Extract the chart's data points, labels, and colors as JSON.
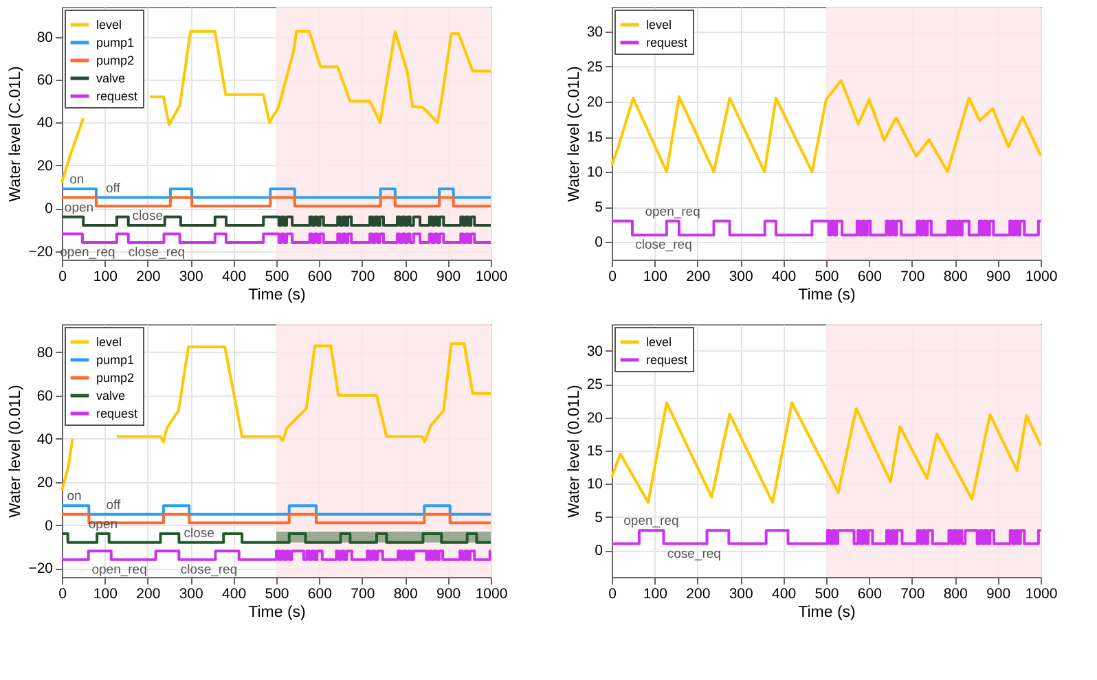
{
  "chart_data": [
    {
      "type": "line",
      "xlabel": "Time (s)",
      "ylabel": "Water level (C.01L)",
      "xlim": [
        0,
        1000
      ],
      "ylim": [
        -24,
        94
      ],
      "xticks": [
        0,
        100,
        200,
        300,
        400,
        500,
        600,
        700,
        800,
        900,
        1000
      ],
      "yticks": [
        -20,
        0,
        20,
        40,
        60,
        80
      ],
      "grid": true,
      "legend": "top left",
      "bands": [
        {
          "axis": "x",
          "from": 500,
          "to": 1000,
          "color": "#fde8ea"
        }
      ],
      "annotations": [
        {
          "text": "on",
          "x": 35,
          "y": 9
        },
        {
          "text": "off",
          "x": 119,
          "y": 5
        },
        {
          "text": "open",
          "x": 40,
          "y": -4
        },
        {
          "text": "close",
          "x": 200,
          "y": -8
        },
        {
          "text": "open_req",
          "x": 60,
          "y": -16
        },
        {
          "text": "close_req",
          "x": 221,
          "y": -16
        }
      ],
      "series": [
        {
          "name": "level",
          "color": "#ffc800",
          "x": [
            0,
            20,
            50,
            57,
            100,
            205,
            237,
            250,
            275,
            300,
            357,
            382,
            470,
            484,
            505,
            540,
            547,
            577,
            603,
            643,
            672,
            718,
            742,
            777,
            805,
            818,
            842,
            876,
            885,
            908,
            925,
            958,
            1000
          ],
          "values": [
            12,
            25,
            42,
            null,
            null,
            52,
            52,
            39,
            48,
            82.5,
            82.5,
            53,
            53,
            40,
            47,
            73,
            82.5,
            82.5,
            66,
            66,
            50,
            50,
            40,
            82.5,
            64,
            47.5,
            47,
            40,
            50,
            81.5,
            81.5,
            64,
            64
          ]
        },
        {
          "name": "pump1",
          "type": "step",
          "color": "#2c9ff0",
          "x": [
            0,
            80,
            253,
            303,
            486,
            543,
            743,
            777,
            880,
            913,
            1000
          ],
          "values": [
            9,
            5,
            9,
            5,
            9,
            5,
            9,
            5,
            9,
            5,
            5
          ]
        },
        {
          "name": "pump2",
          "type": "step",
          "color": "#ff6b2c",
          "x": [
            0,
            80,
            253,
            303,
            486,
            543,
            743,
            777,
            880,
            913,
            1000
          ],
          "values": [
            5,
            1,
            5,
            1,
            5,
            1,
            5,
            1,
            5,
            1,
            1
          ]
        },
        {
          "name": "valve",
          "type": "step",
          "color": "#26492f",
          "x": [
            0,
            50,
            128,
            155,
            240,
            277,
            357,
            383,
            470,
            506,
            512,
            518,
            524,
            537,
            578,
            584,
            590,
            596,
            602,
            610,
            643,
            649,
            655,
            661,
            667,
            675,
            718,
            724,
            730,
            736,
            742,
            750,
            782,
            788,
            794,
            800,
            806,
            812,
            820,
            835,
            857,
            863,
            869,
            875,
            881,
            890,
            930,
            936,
            942,
            948,
            954,
            962,
            1000
          ],
          "values": [
            -4,
            -8,
            -4,
            -8,
            -4,
            -8,
            -4,
            -8,
            -4,
            -8,
            -4,
            -8,
            -4,
            -8,
            -4,
            -8,
            -4,
            -8,
            -4,
            -8,
            -4,
            -8,
            -4,
            -8,
            -4,
            -8,
            -4,
            -8,
            -4,
            -8,
            -4,
            -8,
            -4,
            -8,
            -4,
            -8,
            -4,
            -8,
            -4,
            -8,
            -4,
            -8,
            -4,
            -8,
            -4,
            -8,
            -4,
            -8,
            -4,
            -8,
            -4,
            -8,
            -8
          ]
        },
        {
          "name": "request",
          "type": "step",
          "color": "#cc33ee",
          "x": [
            0,
            48,
            128,
            155,
            238,
            275,
            357,
            383,
            470,
            506,
            512,
            518,
            524,
            537,
            578,
            584,
            590,
            596,
            602,
            610,
            643,
            649,
            655,
            661,
            667,
            675,
            718,
            724,
            730,
            736,
            742,
            750,
            782,
            788,
            794,
            800,
            806,
            812,
            820,
            835,
            857,
            863,
            869,
            875,
            881,
            890,
            930,
            936,
            942,
            948,
            954,
            962,
            1000
          ],
          "values": [
            -12,
            -16,
            -12,
            -16,
            -12,
            -16,
            -12,
            -16,
            -12,
            -16,
            -12,
            -16,
            -12,
            -16,
            -12,
            -16,
            -12,
            -16,
            -12,
            -16,
            -12,
            -16,
            -12,
            -16,
            -12,
            -16,
            -12,
            -16,
            -12,
            -16,
            -12,
            -16,
            -12,
            -16,
            -12,
            -16,
            -12,
            -16,
            -12,
            -16,
            -12,
            -16,
            -12,
            -16,
            -12,
            -16,
            -12,
            -16,
            -12,
            -16,
            -12,
            -16,
            -16
          ]
        }
      ]
    },
    {
      "type": "line",
      "xlabel": "Time (s)",
      "ylabel": "Water level (C.01L)",
      "xlim": [
        0,
        1000
      ],
      "ylim": [
        -2.5,
        33.5
      ],
      "xticks": [
        0,
        100,
        200,
        300,
        400,
        500,
        600,
        700,
        800,
        900,
        1000
      ],
      "yticks": [
        0,
        5,
        10,
        15,
        20,
        25,
        30
      ],
      "grid": true,
      "legend": "top left",
      "bands": [
        {
          "axis": "x",
          "from": 500,
          "to": 1000,
          "color": "#fde8ea"
        }
      ],
      "annotations": [
        {
          "text": "open_req",
          "x": 142,
          "y": 3
        },
        {
          "text": "close_req",
          "x": 121,
          "y": 1
        }
      ],
      "series": [
        {
          "name": "level",
          "color": "#ffc800",
          "x": [
            0,
            15,
            50,
            128,
            157,
            238,
            275,
            356,
            383,
            467,
            500,
            535,
            575,
            600,
            635,
            663,
            710,
            740,
            783,
            808,
            833,
            858,
            888,
            925,
            958,
            1000
          ],
          "values": [
            11,
            13.5,
            20.5,
            10,
            20.7,
            10,
            20.5,
            10,
            20.5,
            10,
            20.3,
            23,
            16.8,
            20.3,
            14.5,
            17.7,
            12.2,
            14.6,
            10,
            15.3,
            20.5,
            17.3,
            19,
            13.6,
            17.8,
            12.3
          ]
        },
        {
          "name": "request",
          "type": "step",
          "color": "#cc33ee",
          "x": [
            0,
            48,
            128,
            157,
            238,
            275,
            357,
            383,
            467,
            506,
            512,
            518,
            524,
            537,
            572,
            578,
            584,
            590,
            596,
            603,
            640,
            646,
            652,
            658,
            664,
            675,
            712,
            718,
            724,
            730,
            736,
            745,
            783,
            789,
            795,
            801,
            807,
            812,
            817,
            833,
            857,
            863,
            869,
            875,
            881,
            890,
            928,
            934,
            940,
            946,
            952,
            962,
            995,
            1000
          ],
          "values": [
            3,
            1,
            3,
            1,
            3,
            1,
            3,
            1,
            3,
            1,
            3,
            1,
            3,
            1,
            3,
            1,
            3,
            1,
            3,
            1,
            3,
            1,
            3,
            1,
            3,
            1,
            3,
            1,
            3,
            1,
            3,
            1,
            3,
            1,
            3,
            1,
            3,
            1,
            3,
            1,
            3,
            1,
            3,
            1,
            3,
            1,
            3,
            1,
            3,
            1,
            3,
            1,
            3,
            3
          ]
        }
      ]
    },
    {
      "type": "line",
      "xlabel": "Time (s)",
      "ylabel": "Water level (0.01L)",
      "xlim": [
        0,
        1000
      ],
      "ylim": [
        -24,
        93
      ],
      "xticks": [
        0,
        100,
        200,
        300,
        400,
        500,
        600,
        700,
        800,
        900,
        1000
      ],
      "yticks": [
        -20,
        0,
        20,
        40,
        60,
        80
      ],
      "grid": true,
      "legend": "top left",
      "bands": [
        {
          "axis": "x",
          "from": 500,
          "to": 1000,
          "color": "#fde8ea"
        }
      ],
      "annotations": [
        {
          "text": "on",
          "x": 29,
          "y": 9
        },
        {
          "text": "off",
          "x": 120,
          "y": 5
        },
        {
          "text": "open",
          "x": 96,
          "y": -4
        },
        {
          "text": "close",
          "x": 320,
          "y": -8
        },
        {
          "text": "open_req",
          "x": 134,
          "y": -16
        },
        {
          "text": "close_req",
          "x": 343,
          "y": -16
        }
      ],
      "series": [
        {
          "name": "level",
          "color": "#ffc800",
          "x": [
            0,
            15,
            25,
            60,
            128,
            230,
            237,
            245,
            272,
            295,
            380,
            420,
            508,
            515,
            525,
            570,
            590,
            627,
            645,
            734,
            757,
            840,
            846,
            860,
            890,
            908,
            938,
            958,
            1000
          ],
          "values": [
            16,
            27,
            40,
            null,
            41,
            41,
            38.5,
            45,
            53,
            82.5,
            82.5,
            41,
            41,
            39,
            45,
            54,
            83,
            83,
            60,
            60,
            41,
            41,
            38.5,
            46,
            53,
            84,
            84,
            61,
            61
          ]
        },
        {
          "name": "pump1",
          "type": "step",
          "color": "#2c9ff0",
          "x": [
            0,
            63,
            237,
            297,
            530,
            593,
            845,
            905,
            1000
          ],
          "values": [
            9,
            5,
            9,
            5,
            9,
            5,
            9,
            5,
            5
          ]
        },
        {
          "name": "pump2",
          "type": "step",
          "color": "#ff6b2c",
          "x": [
            0,
            63,
            237,
            297,
            530,
            593,
            845,
            905,
            1000
          ],
          "values": [
            5,
            1,
            5,
            1,
            5,
            1,
            5,
            1,
            1
          ]
        },
        {
          "name": "valve",
          "type": "step",
          "color": "#1f5c2a",
          "x": [
            0,
            14,
            82,
            110,
            230,
            273,
            377,
            420,
            500,
            530,
            568,
            650,
            672,
            734,
            757,
            842,
            885,
            945,
            967,
            1000
          ],
          "values": [
            -4,
            -8,
            -4,
            -8,
            -4,
            -8,
            -4,
            -8,
            -8,
            -4,
            -8,
            -4,
            -8,
            -4,
            -8,
            -4,
            -8,
            -4,
            -8,
            -8
          ],
          "lower": [
            null,
            null,
            null,
            null,
            null,
            null,
            null,
            null,
            -8,
            -8,
            -8,
            -8,
            -8,
            -8,
            -8,
            -8,
            -8,
            -8,
            -8,
            -8
          ],
          "upper": [
            null,
            null,
            null,
            null,
            null,
            null,
            null,
            null,
            -3,
            -3,
            -3,
            -3,
            -3,
            -3,
            -3,
            -3,
            -3,
            -3,
            -3,
            -3
          ]
        },
        {
          "name": "request",
          "type": "step",
          "color": "#cc33ee",
          "x": [
            0,
            62,
            115,
            219,
            273,
            358,
            413,
            500,
            506,
            512,
            518,
            524,
            530,
            536,
            564,
            571,
            577,
            583,
            589,
            595,
            607,
            640,
            646,
            652,
            658,
            664,
            676,
            712,
            718,
            724,
            730,
            736,
            748,
            784,
            790,
            796,
            802,
            808,
            814,
            820,
            850,
            856,
            862,
            868,
            874,
            880,
            888,
            928,
            934,
            940,
            946,
            952,
            962,
            998,
            1000
          ],
          "values": [
            -16,
            -12,
            -16,
            -12,
            -16,
            -12,
            -16,
            -12,
            -16,
            -12,
            -16,
            -12,
            -16,
            -12,
            -16,
            -12,
            -16,
            -12,
            -16,
            -12,
            -16,
            -12,
            -16,
            -12,
            -16,
            -12,
            -16,
            -12,
            -16,
            -12,
            -16,
            -12,
            -16,
            -12,
            -16,
            -12,
            -16,
            -12,
            -16,
            -12,
            -16,
            -12,
            -16,
            -12,
            -16,
            -12,
            -16,
            -12,
            -16,
            -12,
            -16,
            -12,
            -16,
            -12,
            -12
          ]
        }
      ]
    },
    {
      "type": "line",
      "xlabel": "Time (s)",
      "ylabel": "Water level (0.01L)",
      "xlim": [
        0,
        1000
      ],
      "ylim": [
        -4,
        34
      ],
      "xticks": [
        0,
        100,
        200,
        300,
        400,
        500,
        600,
        700,
        800,
        900,
        1000
      ],
      "yticks": [
        0,
        5,
        10,
        15,
        20,
        25,
        30
      ],
      "grid": true,
      "legend": "top left",
      "bands": [
        {
          "axis": "x",
          "from": 500,
          "to": 1000,
          "color": "#fde8ea"
        }
      ],
      "annotations": [
        {
          "text": "open_req",
          "x": 92,
          "y": 3
        },
        {
          "text": "cose_req",
          "x": 192,
          "y": 1
        }
      ],
      "series": [
        {
          "name": "level",
          "color": "#ffc800",
          "x": [
            0,
            20,
            85,
            128,
            233,
            275,
            375,
            420,
            528,
            570,
            650,
            672,
            735,
            758,
            840,
            882,
            945,
            967,
            1000
          ],
          "values": [
            11,
            14.5,
            7.2,
            22.2,
            8,
            20.5,
            7.2,
            22.2,
            8.7,
            21.3,
            10.3,
            18.6,
            10.8,
            17.5,
            7.7,
            20.4,
            12,
            20.3,
            15.8
          ]
        },
        {
          "name": "request",
          "type": "step",
          "color": "#cc33ee",
          "x": [
            0,
            64,
            121,
            222,
            273,
            360,
            411,
            503,
            509,
            515,
            521,
            527,
            565,
            574,
            580,
            586,
            592,
            598,
            608,
            641,
            647,
            653,
            659,
            665,
            677,
            713,
            719,
            725,
            731,
            737,
            748,
            786,
            792,
            798,
            804,
            810,
            816,
            824,
            852,
            858,
            864,
            870,
            876,
            882,
            891,
            929,
            935,
            941,
            947,
            953,
            962,
            995,
            1000
          ],
          "values": [
            1,
            3,
            1,
            3,
            1,
            3,
            1,
            3,
            1,
            3,
            1,
            3,
            1,
            3,
            1,
            3,
            1,
            3,
            1,
            3,
            1,
            3,
            1,
            3,
            1,
            3,
            1,
            3,
            1,
            3,
            1,
            3,
            1,
            3,
            1,
            3,
            1,
            3,
            1,
            3,
            1,
            3,
            1,
            3,
            1,
            3,
            1,
            3,
            1,
            3,
            1,
            3,
            3
          ]
        }
      ]
    }
  ]
}
